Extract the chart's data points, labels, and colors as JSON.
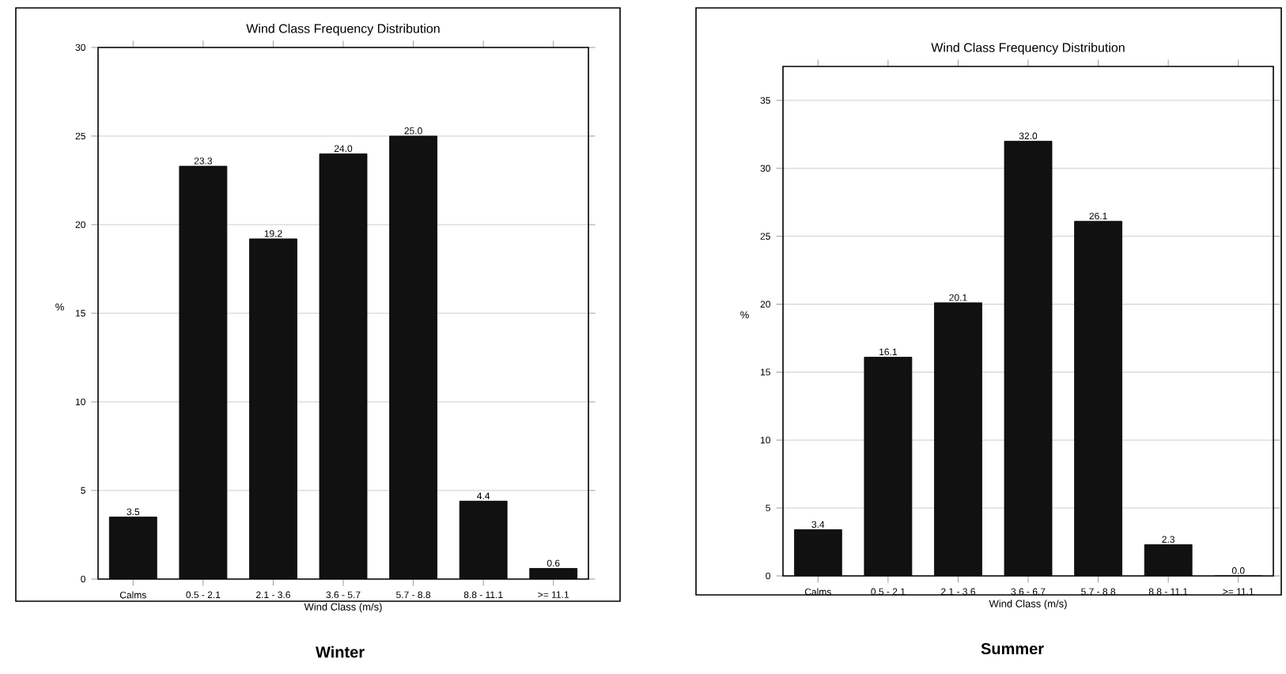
{
  "chart_data": [
    {
      "type": "bar",
      "title": "Wind Class Frequency Distribution",
      "xlabel": "Wind Class (m/s)",
      "ylabel": "%",
      "categories": [
        "Calms",
        "0.5 - 2.1",
        "2.1 - 3.6",
        "3.6 - 5.7",
        "5.7 - 8.8",
        "8.8 - 11.1",
        ">= 11.1"
      ],
      "values": [
        3.5,
        23.3,
        19.2,
        24.0,
        25.0,
        4.4,
        0.6
      ],
      "value_labels": [
        "3.5",
        "23.3",
        "19.2",
        "24.0",
        "25.0",
        "4.4",
        "0.6"
      ],
      "color": "#111111",
      "ylim": [
        0,
        30
      ],
      "yticks": [
        0,
        5,
        10,
        15,
        20,
        25,
        30
      ],
      "grid": "y",
      "annotations": [
        "Winter"
      ]
    },
    {
      "type": "bar",
      "title": "Wind Class Frequency Distribution",
      "xlabel": "Wind Class (m/s)",
      "ylabel": "%",
      "categories": [
        "Calms",
        "0.5 - 2.1",
        "2.1 - 3.6",
        "3.6 - 6.7",
        "5.7 - 8.8",
        "8.8 - 11.1",
        ">= 11.1"
      ],
      "values": [
        3.4,
        16.1,
        20.1,
        32.0,
        26.1,
        2.3,
        0.0
      ],
      "value_labels": [
        "3.4",
        "16.1",
        "20.1",
        "32.0",
        "26.1",
        "2.3",
        "0.0"
      ],
      "color": "#111111",
      "ylim": [
        0,
        37.5
      ],
      "yticks": [
        0,
        5,
        10,
        15,
        20,
        25,
        30,
        35
      ],
      "grid": "y",
      "annotations": [
        "Summer"
      ]
    }
  ]
}
